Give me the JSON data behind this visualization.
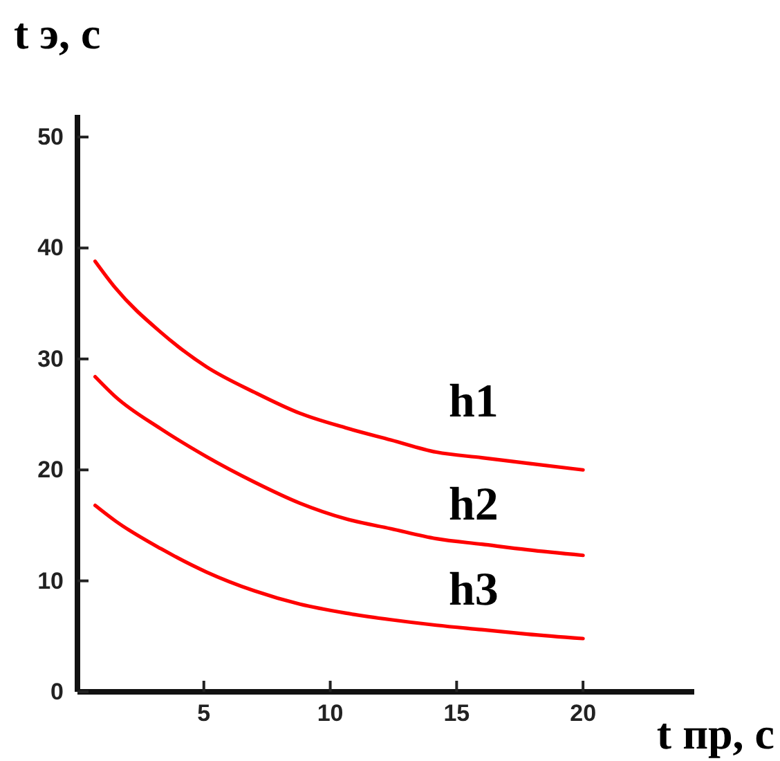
{
  "chart_data": {
    "type": "line",
    "xlabel": "t пр, с",
    "ylabel": "t э, с",
    "xlim": [
      0,
      24.4
    ],
    "ylim": [
      0,
      52
    ],
    "xticks": [
      5,
      10,
      15,
      20
    ],
    "yticks": [
      0,
      10,
      20,
      30,
      40,
      50
    ],
    "marker": "none",
    "line_style": "solid",
    "series": [
      {
        "name": "h1",
        "color": "#ff0000",
        "x": [
          0.7,
          1.5,
          3.3,
          5.1,
          7,
          8.8,
          10.6,
          12.4,
          14.2,
          16,
          17.8,
          20
        ],
        "values": [
          38.8,
          36.4,
          32.4,
          29.3,
          27,
          25.1,
          23.8,
          22.7,
          21.6,
          21.1,
          20.6,
          20
        ]
      },
      {
        "name": "h2",
        "color": "#ff0000",
        "x": [
          0.7,
          1.5,
          3.3,
          5.1,
          7,
          8.8,
          10.6,
          12.4,
          14.2,
          16,
          17.8,
          20
        ],
        "values": [
          28.4,
          26.6,
          23.7,
          21.2,
          18.9,
          17,
          15.6,
          14.7,
          13.8,
          13.3,
          12.8,
          12.3
        ]
      },
      {
        "name": "h3",
        "color": "#ff0000",
        "x": [
          0.7,
          1.5,
          3.3,
          5.1,
          7,
          8.8,
          10.6,
          12.4,
          14.2,
          16,
          17.8,
          20
        ],
        "values": [
          16.8,
          15.4,
          12.9,
          10.8,
          9.1,
          7.9,
          7.1,
          6.5,
          6,
          5.6,
          5.2,
          4.8
        ]
      }
    ]
  }
}
